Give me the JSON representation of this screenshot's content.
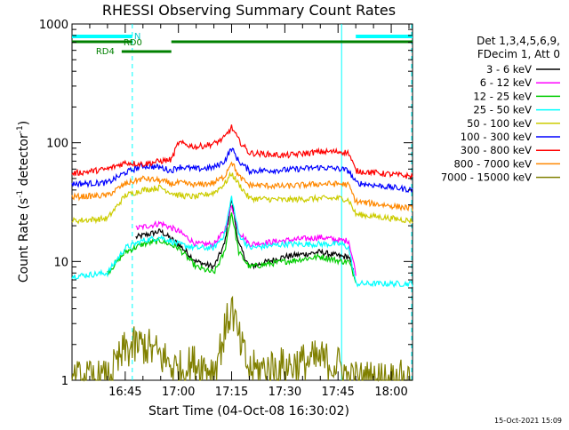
{
  "chart_data": {
    "type": "line",
    "title": "RHESSI Observing Summary Count Rates",
    "xlabel": "Start Time (04-Oct-08 16:30:02)",
    "ylabel_main": "Count Rate (s",
    "ylabel_sup1": "-1",
    "ylabel_mid": " detector",
    "ylabel_sup2": "-1",
    "ylabel_end": ")",
    "yscale": "log",
    "ylim": [
      1,
      1000
    ],
    "xlim_min": [
      0,
      96
    ],
    "x_ticks": [
      {
        "t": 15,
        "label": "16:45"
      },
      {
        "t": 30,
        "label": "17:00"
      },
      {
        "t": 45,
        "label": "17:15"
      },
      {
        "t": 60,
        "label": "17:30"
      },
      {
        "t": 75,
        "label": "17:45"
      },
      {
        "t": 90,
        "label": "18:00"
      }
    ],
    "y_ticks": [
      {
        "v": 1,
        "label": "1"
      },
      {
        "v": 10,
        "label": "10"
      },
      {
        "v": 100,
        "label": "100"
      },
      {
        "v": 1000,
        "label": "1000"
      }
    ],
    "legend_header": [
      "Det 1,3,4,5,6,9,",
      "FDecim 1, Att 0"
    ],
    "legend_placement": "right",
    "series": [
      {
        "name": "3 - 6 keV",
        "color": "#000000",
        "points": [
          [
            18,
            16
          ],
          [
            25,
            18
          ],
          [
            30,
            14
          ],
          [
            35,
            10
          ],
          [
            40,
            9
          ],
          [
            43,
            14
          ],
          [
            45,
            33
          ],
          [
            47,
            14
          ],
          [
            50,
            9
          ],
          [
            60,
            11
          ],
          [
            70,
            12
          ],
          [
            76,
            11
          ],
          [
            78,
            11
          ],
          [
            80,
            7
          ]
        ]
      },
      {
        "name": "6 - 12 keV",
        "color": "#ff00ff",
        "points": [
          [
            18,
            19
          ],
          [
            25,
            21
          ],
          [
            30,
            18
          ],
          [
            35,
            14
          ],
          [
            40,
            14
          ],
          [
            43,
            18
          ],
          [
            45,
            30
          ],
          [
            47,
            18
          ],
          [
            50,
            14
          ],
          [
            60,
            15
          ],
          [
            70,
            16
          ],
          [
            76,
            15
          ],
          [
            78,
            15
          ],
          [
            80,
            8
          ]
        ]
      },
      {
        "name": "12 - 25 keV",
        "color": "#00cc00",
        "points": [
          [
            10,
            8
          ],
          [
            15,
            12
          ],
          [
            20,
            14
          ],
          [
            25,
            15
          ],
          [
            30,
            13
          ],
          [
            35,
            9
          ],
          [
            40,
            8
          ],
          [
            43,
            12
          ],
          [
            45,
            26
          ],
          [
            47,
            12
          ],
          [
            50,
            9
          ],
          [
            60,
            10
          ],
          [
            70,
            11
          ],
          [
            76,
            10
          ],
          [
            78,
            10
          ],
          [
            80,
            7
          ]
        ]
      },
      {
        "name": "25 - 50 keV",
        "color": "#00ffff",
        "points": [
          [
            0,
            7.5
          ],
          [
            10,
            8
          ],
          [
            15,
            13
          ],
          [
            20,
            15
          ],
          [
            25,
            16
          ],
          [
            30,
            14
          ],
          [
            35,
            13
          ],
          [
            40,
            13
          ],
          [
            43,
            17
          ],
          [
            45,
            35
          ],
          [
            47,
            17
          ],
          [
            50,
            13
          ],
          [
            60,
            14
          ],
          [
            70,
            14
          ],
          [
            76,
            14
          ],
          [
            78,
            13
          ],
          [
            80,
            6.5
          ],
          [
            96,
            6.5
          ]
        ]
      },
      {
        "name": "50 - 100 keV",
        "color": "#cccc00",
        "points": [
          [
            0,
            22
          ],
          [
            10,
            23
          ],
          [
            15,
            36
          ],
          [
            20,
            40
          ],
          [
            25,
            42
          ],
          [
            28,
            38
          ],
          [
            30,
            36
          ],
          [
            35,
            35
          ],
          [
            40,
            38
          ],
          [
            43,
            45
          ],
          [
            45,
            55
          ],
          [
            47,
            45
          ],
          [
            50,
            34
          ],
          [
            60,
            33
          ],
          [
            70,
            34
          ],
          [
            76,
            34
          ],
          [
            78,
            33
          ],
          [
            80,
            25
          ],
          [
            96,
            22
          ]
        ]
      },
      {
        "name": "100 - 300 keV",
        "color": "#0000ff",
        "points": [
          [
            0,
            45
          ],
          [
            10,
            46
          ],
          [
            15,
            56
          ],
          [
            20,
            64
          ],
          [
            25,
            62
          ],
          [
            28,
            58
          ],
          [
            30,
            63
          ],
          [
            35,
            60
          ],
          [
            40,
            62
          ],
          [
            43,
            70
          ],
          [
            45,
            90
          ],
          [
            47,
            70
          ],
          [
            50,
            58
          ],
          [
            60,
            59
          ],
          [
            70,
            62
          ],
          [
            76,
            60
          ],
          [
            78,
            58
          ],
          [
            80,
            46
          ],
          [
            96,
            40
          ]
        ]
      },
      {
        "name": "300 - 800 keV",
        "color": "#ff0000",
        "points": [
          [
            0,
            55
          ],
          [
            10,
            60
          ],
          [
            15,
            68
          ],
          [
            20,
            66
          ],
          [
            25,
            70
          ],
          [
            28,
            72
          ],
          [
            30,
            100
          ],
          [
            35,
            92
          ],
          [
            40,
            98
          ],
          [
            43,
            110
          ],
          [
            45,
            135
          ],
          [
            47,
            105
          ],
          [
            50,
            82
          ],
          [
            60,
            78
          ],
          [
            70,
            84
          ],
          [
            76,
            84
          ],
          [
            78,
            82
          ],
          [
            80,
            58
          ],
          [
            96,
            52
          ]
        ]
      },
      {
        "name": "800 - 7000 keV",
        "color": "#ff8800",
        "points": [
          [
            0,
            35
          ],
          [
            10,
            36
          ],
          [
            15,
            45
          ],
          [
            20,
            50
          ],
          [
            25,
            48
          ],
          [
            28,
            45
          ],
          [
            30,
            46
          ],
          [
            35,
            44
          ],
          [
            40,
            46
          ],
          [
            43,
            52
          ],
          [
            45,
            70
          ],
          [
            47,
            52
          ],
          [
            50,
            44
          ],
          [
            60,
            43
          ],
          [
            70,
            45
          ],
          [
            76,
            45
          ],
          [
            78,
            44
          ],
          [
            80,
            32
          ],
          [
            96,
            28
          ]
        ]
      },
      {
        "name": "7000 - 15000 keV",
        "color": "#808000",
        "points": [
          [
            0,
            1
          ],
          [
            10,
            1
          ],
          [
            15,
            1.8
          ],
          [
            20,
            2.0
          ],
          [
            25,
            1.6
          ],
          [
            30,
            1.2
          ],
          [
            35,
            1.4
          ],
          [
            40,
            1.2
          ],
          [
            43,
            2.5
          ],
          [
            45,
            4.2
          ],
          [
            47,
            2.2
          ],
          [
            50,
            1.2
          ],
          [
            60,
            1.3
          ],
          [
            70,
            1.5
          ],
          [
            76,
            1.3
          ],
          [
            78,
            1
          ],
          [
            96,
            1
          ]
        ]
      }
    ],
    "annotations": {
      "saa_label": "N",
      "rd0_label": "RD0",
      "rd4_label": "RD4",
      "saa_segments": [
        [
          0,
          17
        ],
        [
          80,
          96
        ]
      ],
      "rd0_segments": [
        [
          0,
          17
        ],
        [
          28,
          96
        ]
      ],
      "rd4_segments": [
        [
          14,
          28
        ]
      ],
      "dashed_times": [
        17,
        96
      ],
      "solid_times": [
        0,
        76
      ]
    },
    "timestamp": "15-Oct-2021 15:09",
    "grid": false
  }
}
